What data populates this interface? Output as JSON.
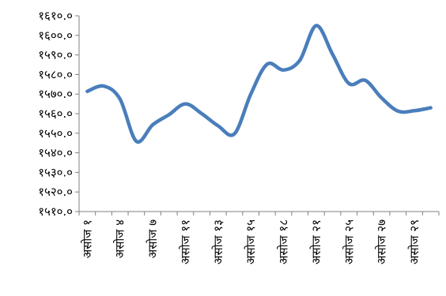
{
  "chart_data": {
    "type": "line",
    "title": "",
    "xlabel": "",
    "ylabel": "",
    "ylim": [
      1510.0,
      1610.0
    ],
    "grid": false,
    "legend": "none",
    "y_ticks": [
      "१५१०.०",
      "१५२०.०",
      "१५३०.०",
      "१५४०.०",
      "१५५०.०",
      "१५६०.०",
      "१५७०.०",
      "१५८०.०",
      "१५९०.०",
      "१६००.०",
      "१६१०.०"
    ],
    "y_tick_values": [
      1510,
      1520,
      1530,
      1540,
      1550,
      1560,
      1570,
      1580,
      1590,
      1600,
      1610
    ],
    "categories": [
      "असोज १",
      "असोज ४",
      "असोज ७",
      "असोज ११",
      "असोज १३",
      "असोज १५",
      "असोज १८",
      "असोज २१",
      "असोज २५",
      "असोज २७",
      "असोज २९"
    ],
    "x": [
      1,
      2,
      3,
      4,
      5,
      6,
      7,
      8,
      9,
      10,
      11,
      12,
      13,
      14,
      15,
      16,
      17,
      18,
      19,
      20,
      21,
      22
    ],
    "label_every": 2,
    "series": [
      {
        "color": "#4a7ebb",
        "values": [
          1571.4,
          1574.1,
          1567.5,
          1545.9,
          1554.3,
          1559.5,
          1565.0,
          1560.0,
          1553.8,
          1549.7,
          1570.0,
          1585.3,
          1582.3,
          1587.3,
          1605.0,
          1590.3,
          1575.4,
          1577.0,
          1568.0,
          1561.3,
          1561.5,
          1563.0
        ]
      }
    ]
  }
}
